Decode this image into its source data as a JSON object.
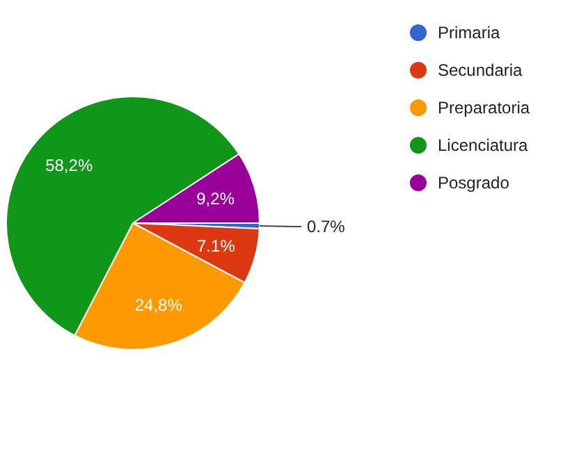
{
  "chart_data": {
    "type": "pie",
    "categories": [
      "Primaria",
      "Secundaria",
      "Preparatoria",
      "Licenciatura",
      "Posgrado"
    ],
    "values": [
      0.7,
      7.1,
      24.8,
      58.2,
      9.2
    ],
    "colors": [
      "#3366cc",
      "#dc3912",
      "#ff9900",
      "#109618",
      "#990099"
    ],
    "value_labels": [
      "0.7%",
      "7.1%",
      "24,8%",
      "58,2%",
      "9,2%"
    ],
    "legend": "top right"
  }
}
